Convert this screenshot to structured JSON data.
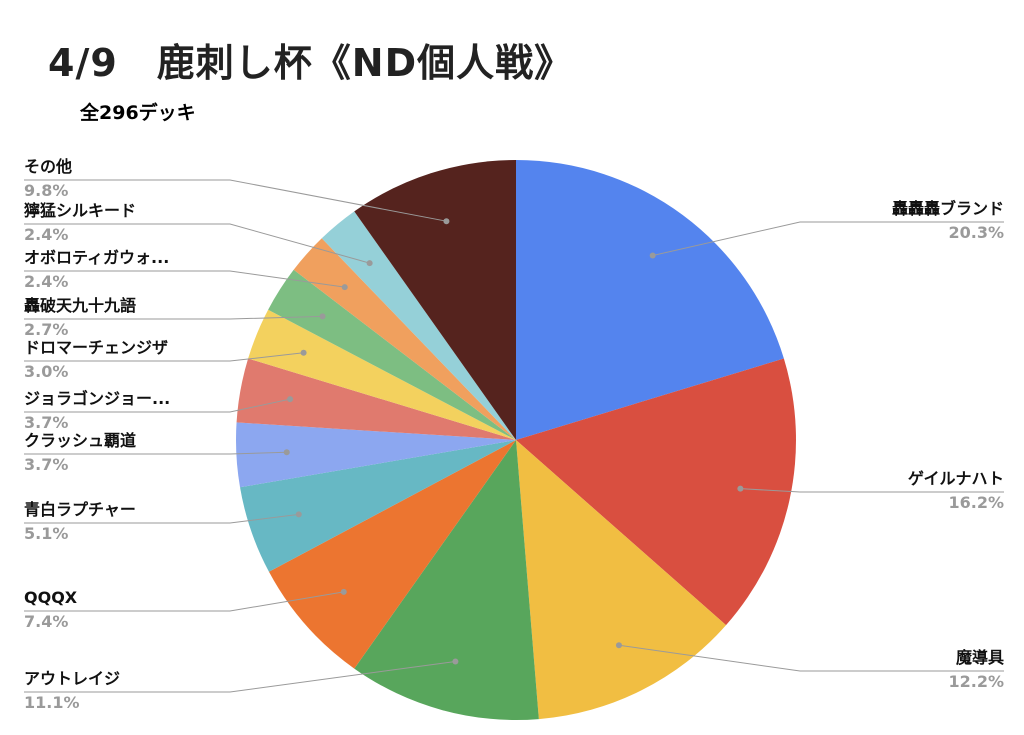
{
  "title": "4/9　鹿刺し杯《ND個人戦》",
  "subtitle": "全296デッキ",
  "chart_data": {
    "type": "pie",
    "title": "4/9　鹿刺し杯《ND個人戦》",
    "subtitle": "全296デッキ",
    "slices": [
      {
        "label": "轟轟轟ブランド",
        "value": 20.3,
        "pct_label": "20.3%",
        "color": "#5484EE"
      },
      {
        "label": "ゲイルナハト",
        "value": 16.2,
        "pct_label": "16.2%",
        "color": "#D94F40"
      },
      {
        "label": "魔導具",
        "value": 12.2,
        "pct_label": "12.2%",
        "color": "#F1BE42"
      },
      {
        "label": "アウトレイジ",
        "value": 11.1,
        "pct_label": "11.1%",
        "color": "#58A65C"
      },
      {
        "label": "QQQX",
        "value": 7.4,
        "pct_label": "7.4%",
        "color": "#EC7530"
      },
      {
        "label": "青白ラプチャー",
        "value": 5.1,
        "pct_label": "5.1%",
        "color": "#67B8C4"
      },
      {
        "label": "クラッシュ覇道",
        "value": 3.7,
        "pct_label": "3.7%",
        "color": "#8CA7F0"
      },
      {
        "label": "ジョラゴンジョー...",
        "value": 3.7,
        "pct_label": "3.7%",
        "color": "#E07A6E"
      },
      {
        "label": "ドロマーチェンジザ",
        "value": 3.0,
        "pct_label": "3.0%",
        "color": "#F3D15E"
      },
      {
        "label": "轟破天九十九語",
        "value": 2.7,
        "pct_label": "2.7%",
        "color": "#7DBE82"
      },
      {
        "label": "オボロティガウォ...",
        "value": 2.4,
        "pct_label": "2.4%",
        "color": "#F0A05E"
      },
      {
        "label": "獰猛シルキード",
        "value": 2.4,
        "pct_label": "2.4%",
        "color": "#95D0D8"
      },
      {
        "label": "その他",
        "value": 9.8,
        "pct_label": "9.8%",
        "color": "#55231E"
      }
    ]
  }
}
